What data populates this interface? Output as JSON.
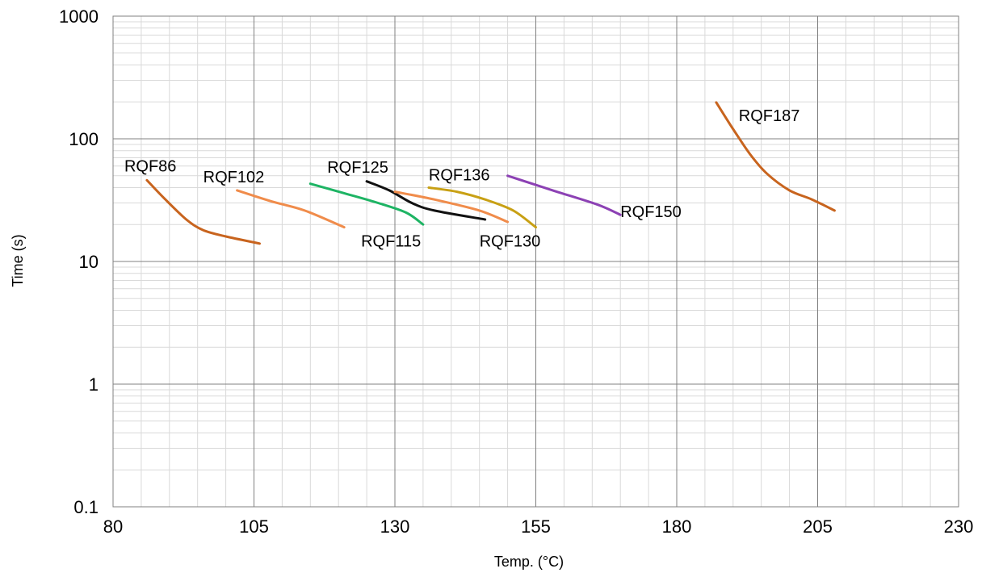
{
  "chart_data": {
    "type": "line",
    "xlabel": "Temp. (°C)",
    "ylabel": "Time (s)",
    "xlim": [
      80,
      230
    ],
    "ylim": [
      0.1,
      1000
    ],
    "y_scale": "log",
    "x_ticks": [
      "80",
      "105",
      "130",
      "155",
      "180",
      "205",
      "230"
    ],
    "y_ticks": [
      "0.1",
      "1",
      "10",
      "100",
      "1000"
    ],
    "grid": true,
    "series": [
      {
        "name": "RQF86",
        "color": "#c8641e",
        "points": [
          [
            86,
            46
          ],
          [
            89,
            33
          ],
          [
            93,
            22
          ],
          [
            96,
            18
          ],
          [
            100,
            16
          ],
          [
            106,
            14
          ]
        ]
      },
      {
        "name": "RQF102",
        "color": "#f08c4b",
        "points": [
          [
            102,
            38
          ],
          [
            108,
            31
          ],
          [
            114,
            26
          ],
          [
            121,
            19
          ]
        ]
      },
      {
        "name": "RQF115",
        "color": "#1eb464",
        "points": [
          [
            115,
            43
          ],
          [
            121,
            36
          ],
          [
            127,
            30
          ],
          [
            132,
            25
          ],
          [
            135,
            20
          ]
        ]
      },
      {
        "name": "RQF125",
        "color": "#111111",
        "points": [
          [
            125,
            45
          ],
          [
            129,
            38
          ],
          [
            133,
            30
          ],
          [
            137,
            26
          ],
          [
            146,
            22
          ]
        ]
      },
      {
        "name": "RQF130",
        "color": "#f08c4b",
        "points": [
          [
            130,
            37
          ],
          [
            137,
            32
          ],
          [
            145,
            26
          ],
          [
            150,
            21
          ]
        ]
      },
      {
        "name": "RQF136",
        "color": "#c8a014",
        "points": [
          [
            136,
            40
          ],
          [
            141,
            37
          ],
          [
            146,
            32
          ],
          [
            151,
            26
          ],
          [
            155,
            19
          ]
        ]
      },
      {
        "name": "RQF150",
        "color": "#8c41b4",
        "points": [
          [
            150,
            50
          ],
          [
            158,
            38
          ],
          [
            166,
            29
          ],
          [
            170,
            24
          ]
        ]
      },
      {
        "name": "RQF187",
        "color": "#c8641e",
        "points": [
          [
            187,
            198
          ],
          [
            190,
            120
          ],
          [
            193,
            75
          ],
          [
            196,
            52
          ],
          [
            200,
            38
          ],
          [
            204,
            32
          ],
          [
            208,
            26
          ]
        ]
      }
    ],
    "labels": [
      {
        "text": "RQF86",
        "x": 82,
        "y": 54
      },
      {
        "text": "RQF102",
        "x": 96,
        "y": 44
      },
      {
        "text": "RQF115",
        "x": 124,
        "y": 13.2
      },
      {
        "text": "RQF125",
        "x": 118,
        "y": 53
      },
      {
        "text": "RQF130",
        "x": 145,
        "y": 13.2
      },
      {
        "text": "RQF136",
        "x": 136,
        "y": 46
      },
      {
        "text": "RQF150",
        "x": 170,
        "y": 23
      },
      {
        "text": "RQF187",
        "x": 191,
        "y": 140
      }
    ]
  }
}
